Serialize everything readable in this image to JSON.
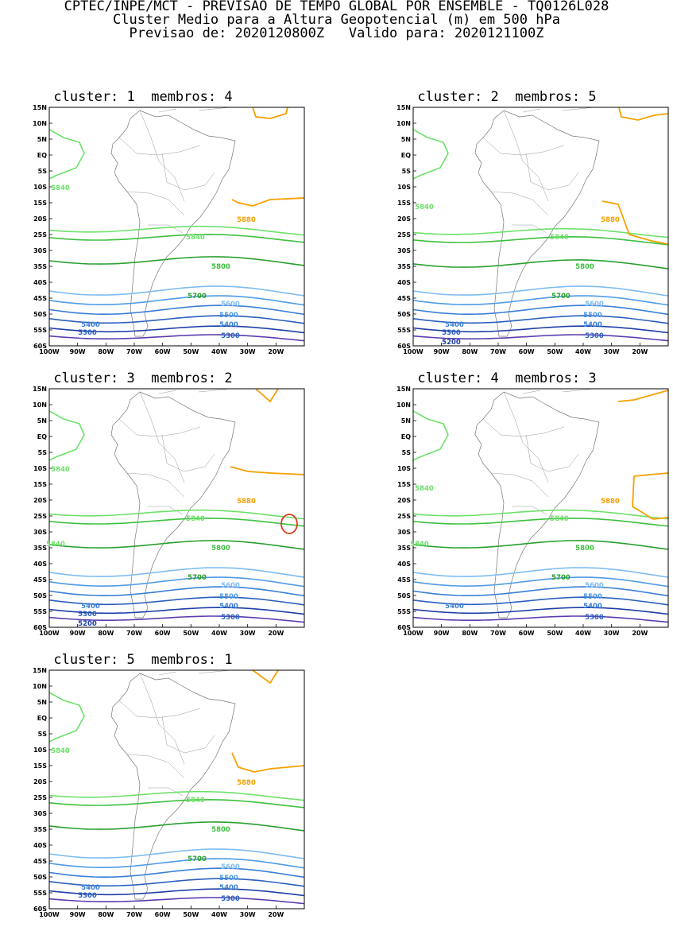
{
  "header": {
    "line1": "CPTEC/INPE/MCT - PREVISAO DE TEMPO GLOBAL POR ENSEMBLE - TQ0126L028",
    "line2": "Cluster Medio para a Altura Geopotencial (m) em 500 hPa",
    "line3": "Previsao de: 2020120800Z   Valido para: 2020121100Z"
  },
  "axes": {
    "lat_ticks": [
      "15N",
      "10N",
      "5N",
      "EQ",
      "5S",
      "10S",
      "15S",
      "20S",
      "25S",
      "30S",
      "35S",
      "40S",
      "45S",
      "50S",
      "55S",
      "60S"
    ],
    "lon_ticks": [
      "100W",
      "90W",
      "80W",
      "70W",
      "60W",
      "50W",
      "40W",
      "30W",
      "20W"
    ]
  },
  "contour_colors": {
    "5200": "#1f3fa8",
    "5300": "#2b5fbf",
    "5400": "#3a7fd6",
    "5500": "#4f9be6",
    "5600": "#7fbcf2",
    "5700": "#2aa030",
    "5800": "#3ec040",
    "5840": "#6ee06a",
    "5880": "#f5a000",
    "5920": "#e03a1a",
    "low": "#5a3cb0"
  },
  "panels": [
    {
      "title": "cluster: 1  membros: 4",
      "labels": [
        "5880",
        "5840",
        "5840",
        "5800",
        "5700",
        "5600",
        "5500",
        "5400",
        "5400",
        "5300",
        "5300"
      ]
    },
    {
      "title": "cluster: 2  membros: 5",
      "labels": [
        "5880",
        "5840",
        "5840",
        "5800",
        "5700",
        "5600",
        "5500",
        "5400",
        "5400",
        "5300",
        "5300",
        "5200"
      ]
    },
    {
      "title": "cluster: 3  membros: 2",
      "labels": [
        "5880",
        "5840",
        "5840",
        "5840",
        "5800",
        "5700",
        "5600",
        "5500",
        "5400",
        "5400",
        "5300",
        "5300",
        "5200"
      ]
    },
    {
      "title": "cluster: 4  membros: 3",
      "labels": [
        "5880",
        "5840",
        "5840",
        "5840",
        "5800",
        "5700",
        "5600",
        "5500",
        "5400",
        "5400",
        "5300"
      ]
    },
    {
      "title": "cluster: 5  membros: 1",
      "labels": [
        "5880",
        "5840",
        "5840",
        "5800",
        "5700",
        "5600",
        "5500",
        "5400",
        "5400",
        "5300",
        "5300"
      ]
    }
  ]
}
